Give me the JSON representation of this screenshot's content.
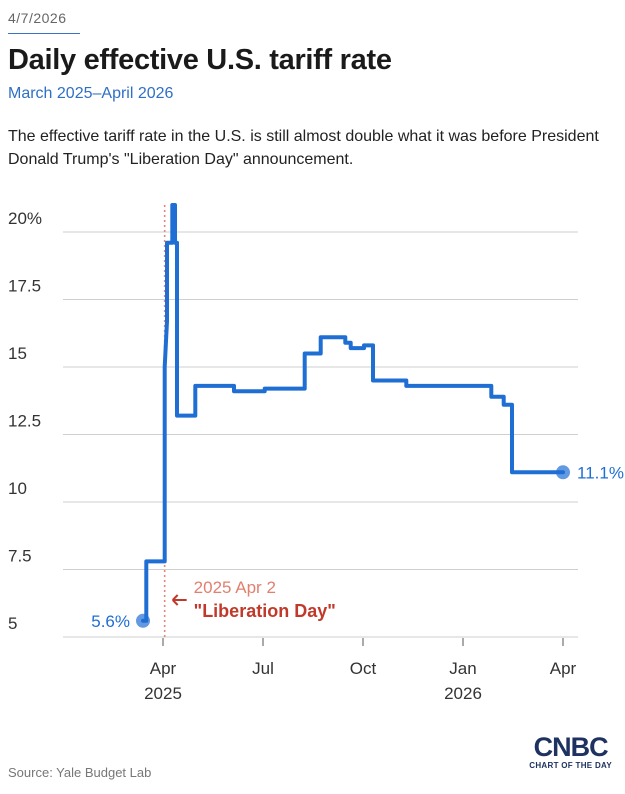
{
  "header": {
    "date": "4/7/2026",
    "title": "Daily effective U.S. tariff rate",
    "subtitle": "March 2025–April 2026",
    "description": "The effective tariff rate in the U.S. is still almost double what it was before President Donald Trump's \"Liberation Day\" announcement."
  },
  "footer": {
    "source": "Source: Yale Budget Lab",
    "brand": "CNBC",
    "brand_sub": "CHART OF THE DAY"
  },
  "colors": {
    "line": "#1f6ed4",
    "annotation": "#c0392b",
    "grid": "#cfcfcf",
    "axis_text": "#333333"
  },
  "chart_data": {
    "type": "line",
    "title": "Daily effective U.S. tariff rate",
    "xlabel": "",
    "ylabel": "",
    "x_unit": "month (Jan 2025 = 1)",
    "xlim": [
      1,
      16
    ],
    "ylim": [
      5,
      20
    ],
    "yticks": [
      {
        "value": 5,
        "label": "5"
      },
      {
        "value": 7.5,
        "label": "7.5"
      },
      {
        "value": 10,
        "label": "10"
      },
      {
        "value": 12.5,
        "label": "12.5"
      },
      {
        "value": 15,
        "label": "15"
      },
      {
        "value": 17.5,
        "label": "17.5"
      },
      {
        "value": 20,
        "label": "20%"
      }
    ],
    "xticks": [
      {
        "value": 4,
        "label": "Apr",
        "sublabel": "2025"
      },
      {
        "value": 7,
        "label": "Jul",
        "sublabel": ""
      },
      {
        "value": 10,
        "label": "Oct",
        "sublabel": ""
      },
      {
        "value": 13,
        "label": "Jan",
        "sublabel": "2026"
      },
      {
        "value": 16,
        "label": "Apr",
        "sublabel": ""
      }
    ],
    "series": [
      {
        "name": "Daily effective U.S. tariff rate",
        "points": [
          [
            3.4,
            5.6
          ],
          [
            3.5,
            5.6
          ],
          [
            3.5,
            7.8
          ],
          [
            4.05,
            7.8
          ],
          [
            4.05,
            15.0
          ],
          [
            4.12,
            16.7
          ],
          [
            4.12,
            19.6
          ],
          [
            4.28,
            19.6
          ],
          [
            4.28,
            21.0
          ],
          [
            4.36,
            21.0
          ],
          [
            4.36,
            19.6
          ],
          [
            4.42,
            19.6
          ],
          [
            4.42,
            13.2
          ],
          [
            4.97,
            13.2
          ],
          [
            4.97,
            14.3
          ],
          [
            6.13,
            14.3
          ],
          [
            6.13,
            14.1
          ],
          [
            7.05,
            14.1
          ],
          [
            7.05,
            14.2
          ],
          [
            8.25,
            14.2
          ],
          [
            8.25,
            15.5
          ],
          [
            8.73,
            15.5
          ],
          [
            8.73,
            16.1
          ],
          [
            9.47,
            16.1
          ],
          [
            9.47,
            15.9
          ],
          [
            9.63,
            15.9
          ],
          [
            9.63,
            15.7
          ],
          [
            10.03,
            15.7
          ],
          [
            10.03,
            15.8
          ],
          [
            10.3,
            15.8
          ],
          [
            10.3,
            14.5
          ],
          [
            11.3,
            14.5
          ],
          [
            11.3,
            14.3
          ],
          [
            13.85,
            14.3
          ],
          [
            13.85,
            13.9
          ],
          [
            14.22,
            13.9
          ],
          [
            14.22,
            13.6
          ],
          [
            14.47,
            13.6
          ],
          [
            14.47,
            11.1
          ],
          [
            16.0,
            11.1
          ]
        ],
        "start_label": "5.6%",
        "end_label": "11.1%"
      }
    ],
    "annotations": [
      {
        "x": 4.05,
        "line1": "2025 Apr 2",
        "line2": "\"Liberation Day\""
      }
    ]
  }
}
